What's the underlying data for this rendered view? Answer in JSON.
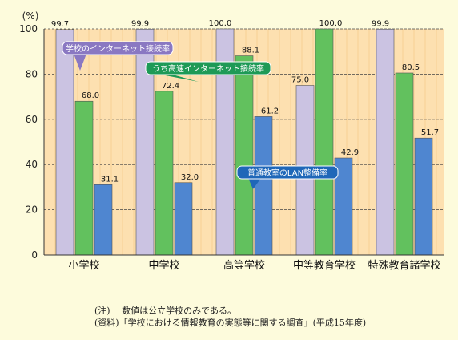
{
  "chart_data": {
    "type": "bar",
    "unit_label": "(%)",
    "categories": [
      "小学校",
      "中学校",
      "高等学校",
      "中等教育学校",
      "特殊教育諸学校"
    ],
    "series": [
      {
        "name": "学校のインターネット接続率",
        "values": [
          99.7,
          99.9,
          100.0,
          75.0,
          99.9
        ],
        "color": "#cbc3e2"
      },
      {
        "name": "うち高速インターネット接続率",
        "values": [
          68.0,
          72.4,
          88.1,
          100.0,
          80.5
        ],
        "color": "#62c15e"
      },
      {
        "name": "普通教室のLAN整備率",
        "values": [
          31.1,
          32.0,
          61.2,
          42.9,
          51.7
        ],
        "color": "#4f86d0"
      }
    ],
    "value_labels": [
      [
        "99.7",
        "99.9",
        "100.0",
        "75.0",
        "99.9"
      ],
      [
        "68.0",
        "72.4",
        "88.1",
        "100.0",
        "80.5"
      ],
      [
        "31.1",
        "32.0",
        "61.2",
        "42.9",
        "51.7"
      ]
    ],
    "ylim": [
      0,
      100
    ],
    "yticks": [
      0,
      20,
      40,
      60,
      80,
      100
    ],
    "grid": true,
    "callout_colors": [
      "#8a78c2",
      "#1e9a56",
      "#1f67b8"
    ],
    "plot_background": "#fde0b0"
  },
  "notes": {
    "line1": "(注)　 数値は公立学校のみである。",
    "line2": "(資料)「学校における情報教育の実態等に関する調査」(平成15年度)"
  }
}
